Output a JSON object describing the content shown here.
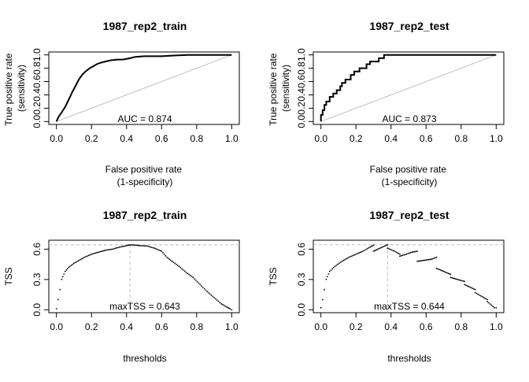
{
  "chart_data": [
    {
      "type": "line",
      "title": "1987_rep2_train",
      "xlabel": "False positive rate\n(1-specificity)",
      "ylabel": "True positive rate\n(sensitivity)",
      "xlim": [
        0,
        1
      ],
      "ylim": [
        0,
        1
      ],
      "xticks": [
        "0.0",
        "0.2",
        "0.4",
        "0.6",
        "0.8",
        "1.0"
      ],
      "yticks": [
        "0.0",
        "0.2",
        "0.4",
        "0.6",
        "0.8",
        "1.0"
      ],
      "annotation": "AUC = 0.874",
      "reference_line": {
        "x": [
          0,
          1
        ],
        "y": [
          0,
          1
        ],
        "color": "#bebebe"
      },
      "series": [
        {
          "name": "ROC",
          "color": "#000000",
          "x": [
            0,
            0.01,
            0.02,
            0.03,
            0.05,
            0.07,
            0.09,
            0.11,
            0.13,
            0.15,
            0.17,
            0.19,
            0.21,
            0.23,
            0.25,
            0.28,
            0.31,
            0.35,
            0.38,
            0.42,
            0.45,
            0.5,
            0.55,
            0.6,
            0.67,
            0.75,
            0.85,
            1.0
          ],
          "y": [
            0,
            0.06,
            0.1,
            0.14,
            0.22,
            0.33,
            0.44,
            0.54,
            0.64,
            0.71,
            0.76,
            0.8,
            0.83,
            0.86,
            0.88,
            0.9,
            0.92,
            0.93,
            0.93,
            0.95,
            0.97,
            0.98,
            0.98,
            0.98,
            0.99,
            1.0,
            1.0,
            1.0
          ]
        }
      ]
    },
    {
      "type": "line",
      "title": "1987_rep2_test",
      "xlabel": "False positive rate\n(1-specificity)",
      "ylabel": "True positive rate\n(sensitivity)",
      "xlim": [
        0,
        1
      ],
      "ylim": [
        0,
        1
      ],
      "xticks": [
        "0.0",
        "0.2",
        "0.4",
        "0.6",
        "0.8",
        "1.0"
      ],
      "yticks": [
        "0.0",
        "0.2",
        "0.4",
        "0.6",
        "0.8",
        "1.0"
      ],
      "annotation": "AUC = 0.873",
      "reference_line": {
        "x": [
          0,
          1
        ],
        "y": [
          0,
          1
        ],
        "color": "#bebebe"
      },
      "series": [
        {
          "name": "ROC",
          "color": "#000000",
          "x": [
            0,
            0,
            0.01,
            0.01,
            0.02,
            0.02,
            0.03,
            0.03,
            0.05,
            0.05,
            0.07,
            0.07,
            0.09,
            0.09,
            0.11,
            0.11,
            0.12,
            0.12,
            0.14,
            0.14,
            0.17,
            0.17,
            0.19,
            0.19,
            0.22,
            0.22,
            0.26,
            0.26,
            0.28,
            0.28,
            0.33,
            0.33,
            0.36,
            0.36,
            1.0
          ],
          "y": [
            0,
            0.1,
            0.1,
            0.17,
            0.17,
            0.25,
            0.25,
            0.3,
            0.3,
            0.37,
            0.37,
            0.42,
            0.42,
            0.47,
            0.47,
            0.53,
            0.53,
            0.58,
            0.58,
            0.63,
            0.63,
            0.7,
            0.7,
            0.75,
            0.75,
            0.8,
            0.8,
            0.86,
            0.86,
            0.9,
            0.9,
            0.95,
            0.95,
            1.0,
            1.0
          ]
        }
      ]
    },
    {
      "type": "scatter",
      "title": "1987_rep2_train",
      "xlabel": "thresholds",
      "ylabel": "TSS",
      "xlim": [
        0,
        1
      ],
      "ylim": [
        0,
        0.66
      ],
      "xticks": [
        "0.0",
        "0.2",
        "0.4",
        "0.6",
        "0.8",
        "1.0"
      ],
      "yticks": [
        "0.0",
        "0.3",
        "0.6"
      ],
      "annotation": "maxTSS = 0.643",
      "max_tss": 0.643,
      "optimal_threshold": 0.42,
      "curve": {
        "x": [
          0,
          0.01,
          0.02,
          0.03,
          0.05,
          0.07,
          0.1,
          0.13,
          0.16,
          0.2,
          0.24,
          0.28,
          0.32,
          0.36,
          0.4,
          0.42,
          0.45,
          0.48,
          0.52,
          0.56,
          0.6,
          0.63,
          0.66,
          0.7,
          0.74,
          0.78,
          0.82,
          0.86,
          0.9,
          0.94,
          0.97,
          0.99,
          1.0
        ],
        "y": [
          0.01,
          0.1,
          0.2,
          0.3,
          0.38,
          0.42,
          0.46,
          0.49,
          0.52,
          0.55,
          0.57,
          0.59,
          0.6,
          0.62,
          0.635,
          0.643,
          0.64,
          0.635,
          0.63,
          0.61,
          0.58,
          0.52,
          0.48,
          0.43,
          0.37,
          0.32,
          0.25,
          0.18,
          0.12,
          0.06,
          0.03,
          0.01,
          0.0
        ]
      }
    },
    {
      "type": "scatter",
      "title": "1987_rep2_test",
      "xlabel": "thresholds",
      "ylabel": "TSS",
      "xlim": [
        0,
        1
      ],
      "ylim": [
        0,
        0.66
      ],
      "xticks": [
        "0.0",
        "0.2",
        "0.4",
        "0.6",
        "0.8",
        "1.0"
      ],
      "yticks": [
        "0.0",
        "0.3",
        "0.6"
      ],
      "annotation": "maxTSS = 0.644",
      "max_tss": 0.644,
      "optimal_threshold": 0.38,
      "curve": {
        "x": [
          0,
          0.01,
          0.02,
          0.03,
          0.05,
          0.08,
          0.12,
          0.16,
          0.2,
          0.24,
          0.28,
          0.3,
          0.3,
          0.35,
          0.38,
          0.38,
          0.42,
          0.45,
          0.45,
          0.52,
          0.55,
          0.55,
          0.63,
          0.66,
          0.66,
          0.74,
          0.74,
          0.82,
          0.82,
          0.88,
          0.88,
          0.92,
          0.95,
          0.95,
          0.99,
          1.0
        ],
        "y": [
          0.02,
          0.1,
          0.2,
          0.3,
          0.38,
          0.43,
          0.48,
          0.52,
          0.55,
          0.58,
          0.62,
          0.64,
          0.58,
          0.62,
          0.644,
          0.61,
          0.58,
          0.55,
          0.53,
          0.57,
          0.58,
          0.48,
          0.5,
          0.52,
          0.41,
          0.35,
          0.32,
          0.28,
          0.25,
          0.2,
          0.17,
          0.13,
          0.1,
          0.08,
          0.02,
          0.02
        ]
      }
    }
  ]
}
